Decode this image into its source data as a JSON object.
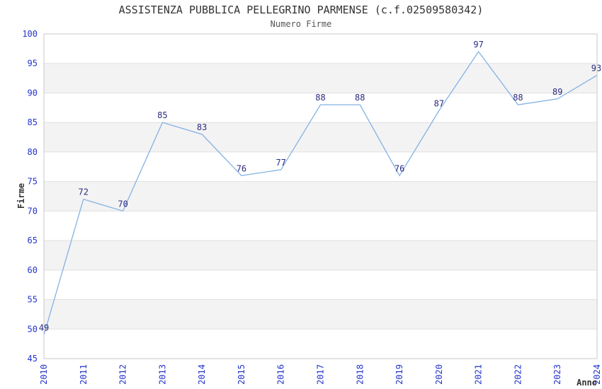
{
  "chart_data": {
    "type": "line",
    "title": "ASSISTENZA PUBBLICA PELLEGRINO PARMENSE (c.f.02509580342)",
    "subtitle": "Numero Firme",
    "xlabel": "Anno",
    "ylabel": "Firme",
    "x": [
      "2010",
      "2011",
      "2012",
      "2013",
      "2014",
      "2015",
      "2016",
      "2017",
      "2018",
      "2019",
      "2020",
      "2021",
      "2022",
      "2023",
      "2024"
    ],
    "series": [
      {
        "name": "Numero Firme",
        "values": [
          49,
          72,
          70,
          85,
          83,
          76,
          77,
          88,
          88,
          76,
          87,
          97,
          88,
          89,
          93
        ]
      }
    ],
    "ylim": [
      45,
      100
    ],
    "ytick_step": 5,
    "grid": "horizontal-alternating-bands",
    "legend": "none",
    "value_labels_shown": true,
    "colors": {
      "line": "#85b2e4",
      "value_label": "#2b2b80",
      "tick_label": "#2233cc",
      "band": "#f3f3f3",
      "gridline": "#e0e0e0",
      "plot_border": "#c9c9c9",
      "title": "#333333",
      "subtitle": "#555555"
    }
  }
}
